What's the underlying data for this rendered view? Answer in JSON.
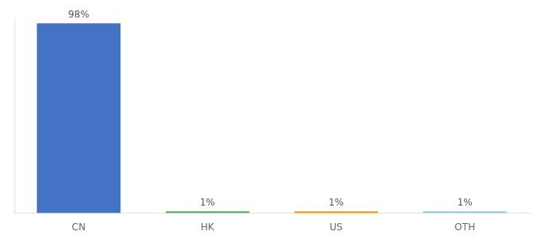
{
  "chart_data": {
    "type": "bar",
    "categories": [
      "CN",
      "HK",
      "US",
      "OTH"
    ],
    "values": [
      98,
      1,
      1,
      1
    ],
    "value_labels": [
      "98%",
      "1%",
      "1%",
      "1%"
    ],
    "colors": [
      "#4472c4",
      "#4caf50",
      "#ff9800",
      "#87ceeb"
    ],
    "ylim": [
      0,
      101
    ],
    "data_labels": true,
    "tick_labels": "x",
    "grid": false
  }
}
